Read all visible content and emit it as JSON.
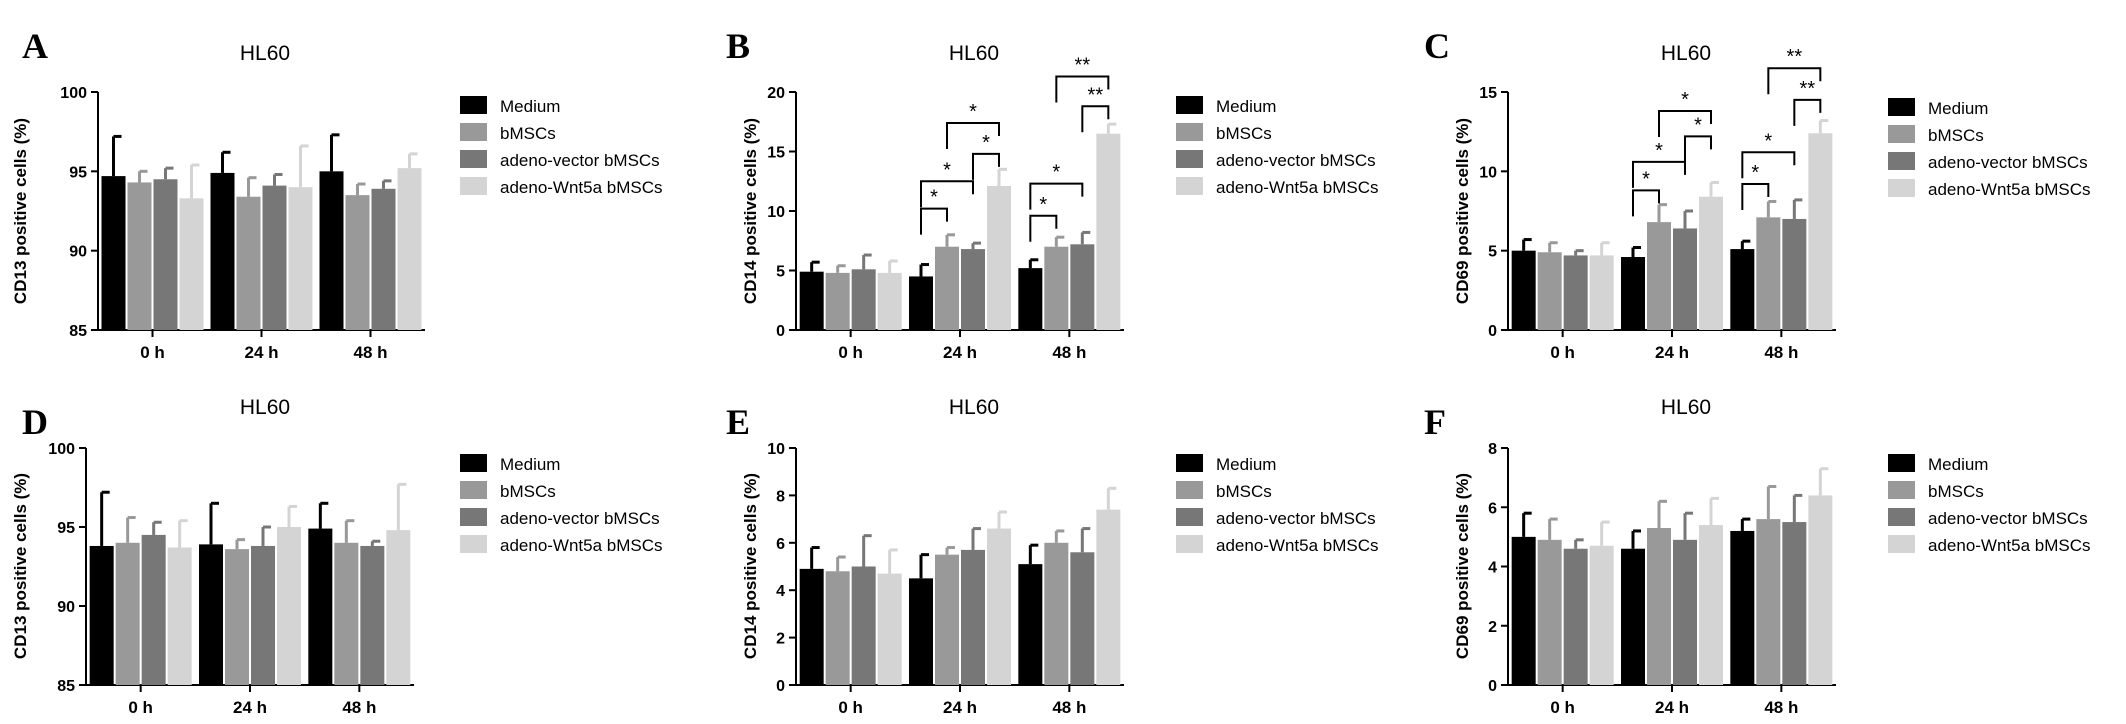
{
  "colors": {
    "medium": "#000000",
    "bmscs": "#999999",
    "vector": "#777777",
    "wnt5a": "#d4d4d4"
  },
  "chart_data": [
    {
      "panel": "A",
      "type": "bar",
      "title": "HL60",
      "ylabel": "CD13 positive cells (%)",
      "ylim": [
        85,
        100
      ],
      "yticks": [
        85,
        90,
        95,
        100
      ],
      "categories": [
        "0 h",
        "24 h",
        "48 h"
      ],
      "series": [
        {
          "name": "Medium",
          "values": [
            94.7,
            94.9,
            95.0
          ],
          "errors": [
            2.5,
            1.3,
            2.3
          ]
        },
        {
          "name": "bMSCs",
          "values": [
            94.3,
            93.4,
            93.5
          ],
          "errors": [
            0.7,
            1.2,
            0.7
          ]
        },
        {
          "name": "adeno-vector bMSCs",
          "values": [
            94.5,
            94.1,
            93.9
          ],
          "errors": [
            0.7,
            0.7,
            0.5
          ]
        },
        {
          "name": "adeno-Wnt5a bMSCs",
          "values": [
            93.3,
            94.0,
            95.2
          ],
          "errors": [
            2.1,
            2.6,
            0.9
          ]
        }
      ],
      "legend": "right",
      "significance": []
    },
    {
      "panel": "B",
      "type": "bar",
      "title": "HL60",
      "ylabel": "CD14 positive cells (%)",
      "ylim": [
        0,
        20
      ],
      "yticks": [
        0,
        5,
        10,
        15,
        20
      ],
      "categories": [
        "0 h",
        "24 h",
        "48 h"
      ],
      "series": [
        {
          "name": "Medium",
          "values": [
            4.9,
            4.5,
            5.2
          ],
          "errors": [
            0.8,
            1.0,
            0.7
          ]
        },
        {
          "name": "bMSCs",
          "values": [
            4.8,
            7.0,
            7.0
          ],
          "errors": [
            0.6,
            1.0,
            0.8
          ]
        },
        {
          "name": "adeno-vector bMSCs",
          "values": [
            5.1,
            6.8,
            7.2
          ],
          "errors": [
            1.2,
            0.5,
            1.0
          ]
        },
        {
          "name": "adeno-Wnt5a bMSCs",
          "values": [
            4.8,
            12.1,
            16.5
          ],
          "errors": [
            1.0,
            1.4,
            0.8
          ]
        }
      ],
      "legend": "right",
      "significance": [
        {
          "category": 1,
          "from": 0,
          "to": 1,
          "level": 10.2,
          "label": "*"
        },
        {
          "category": 1,
          "from": 0,
          "to": 2,
          "level": 12.5,
          "label": "*"
        },
        {
          "category": 1,
          "from": 2,
          "to": 3,
          "level": 14.8,
          "label": "*"
        },
        {
          "category": 1,
          "from": 1,
          "to": 3,
          "level": 17.4,
          "label": "*"
        },
        {
          "category": 2,
          "from": 0,
          "to": 1,
          "level": 9.6,
          "label": "*"
        },
        {
          "category": 2,
          "from": 0,
          "to": 2,
          "level": 12.3,
          "label": "*"
        },
        {
          "category": 2,
          "from": 2,
          "to": 3,
          "level": 18.8,
          "label": "**"
        },
        {
          "category": 2,
          "from": 1,
          "to": 3,
          "level": 21.3,
          "label": "**"
        }
      ]
    },
    {
      "panel": "C",
      "type": "bar",
      "title": "HL60",
      "ylabel": "CD69 positive cells (%)",
      "ylim": [
        0,
        15
      ],
      "yticks": [
        0,
        5,
        10,
        15
      ],
      "categories": [
        "0 h",
        "24 h",
        "48 h"
      ],
      "series": [
        {
          "name": "Medium",
          "values": [
            5.0,
            4.6,
            5.1
          ],
          "errors": [
            0.7,
            0.6,
            0.5
          ]
        },
        {
          "name": "bMSCs",
          "values": [
            4.9,
            6.8,
            7.1
          ],
          "errors": [
            0.6,
            1.1,
            1.0
          ]
        },
        {
          "name": "adeno-vector bMSCs",
          "values": [
            4.7,
            6.4,
            7.0
          ],
          "errors": [
            0.3,
            1.1,
            1.2
          ]
        },
        {
          "name": "adeno-Wnt5a bMSCs",
          "values": [
            4.7,
            8.4,
            12.4
          ],
          "errors": [
            0.8,
            0.9,
            0.8
          ]
        }
      ],
      "legend": "right",
      "significance": [
        {
          "category": 1,
          "from": 0,
          "to": 1,
          "level": 8.8,
          "label": "*"
        },
        {
          "category": 1,
          "from": 0,
          "to": 2,
          "level": 10.6,
          "label": "*"
        },
        {
          "category": 1,
          "from": 2,
          "to": 3,
          "level": 12.2,
          "label": "*"
        },
        {
          "category": 1,
          "from": 1,
          "to": 3,
          "level": 13.8,
          "label": "*"
        },
        {
          "category": 2,
          "from": 0,
          "to": 1,
          "level": 9.2,
          "label": "*"
        },
        {
          "category": 2,
          "from": 0,
          "to": 2,
          "level": 11.2,
          "label": "*"
        },
        {
          "category": 2,
          "from": 2,
          "to": 3,
          "level": 14.5,
          "label": "**"
        },
        {
          "category": 2,
          "from": 1,
          "to": 3,
          "level": 16.5,
          "label": "**"
        }
      ]
    },
    {
      "panel": "D",
      "type": "bar",
      "title": "HL60",
      "ylabel": "CD13 positive cells (%)",
      "ylim": [
        85,
        100
      ],
      "yticks": [
        85,
        90,
        95,
        100
      ],
      "categories": [
        "0 h",
        "24 h",
        "48 h"
      ],
      "series": [
        {
          "name": "Medium",
          "values": [
            93.8,
            93.9,
            94.9
          ],
          "errors": [
            3.4,
            2.6,
            1.6
          ]
        },
        {
          "name": "bMSCs",
          "values": [
            94.0,
            93.6,
            94.0
          ],
          "errors": [
            1.6,
            0.6,
            1.4
          ]
        },
        {
          "name": "adeno-vector bMSCs",
          "values": [
            94.5,
            93.8,
            93.8
          ],
          "errors": [
            0.8,
            1.2,
            0.3
          ]
        },
        {
          "name": "adeno-Wnt5a bMSCs",
          "values": [
            93.7,
            95.0,
            94.8
          ],
          "errors": [
            1.7,
            1.3,
            2.9
          ]
        }
      ],
      "legend": "right",
      "significance": []
    },
    {
      "panel": "E",
      "type": "bar",
      "title": "HL60",
      "ylabel": "CD14 positive cells (%)",
      "ylim": [
        0,
        10
      ],
      "yticks": [
        0,
        2,
        4,
        6,
        8,
        10
      ],
      "categories": [
        "0 h",
        "24 h",
        "48 h"
      ],
      "series": [
        {
          "name": "Medium",
          "values": [
            4.9,
            4.5,
            5.1
          ],
          "errors": [
            0.9,
            1.0,
            0.8
          ]
        },
        {
          "name": "bMSCs",
          "values": [
            4.8,
            5.5,
            6.0
          ],
          "errors": [
            0.6,
            0.3,
            0.5
          ]
        },
        {
          "name": "adeno-vector bMSCs",
          "values": [
            5.0,
            5.7,
            5.6
          ],
          "errors": [
            1.3,
            0.9,
            1.0
          ]
        },
        {
          "name": "adeno-Wnt5a bMSCs",
          "values": [
            4.7,
            6.6,
            7.4
          ],
          "errors": [
            1.0,
            0.7,
            0.9
          ]
        }
      ],
      "legend": "right",
      "significance": []
    },
    {
      "panel": "F",
      "type": "bar",
      "title": "HL60",
      "ylabel": "CD69 positive cells (%)",
      "ylim": [
        0,
        8
      ],
      "yticks": [
        0,
        2,
        4,
        6,
        8
      ],
      "categories": [
        "0 h",
        "24 h",
        "48 h"
      ],
      "series": [
        {
          "name": "Medium",
          "values": [
            5.0,
            4.6,
            5.2
          ],
          "errors": [
            0.8,
            0.6,
            0.4
          ]
        },
        {
          "name": "bMSCs",
          "values": [
            4.9,
            5.3,
            5.6
          ],
          "errors": [
            0.7,
            0.9,
            1.1
          ]
        },
        {
          "name": "adeno-vector bMSCs",
          "values": [
            4.6,
            4.9,
            5.5
          ],
          "errors": [
            0.3,
            0.9,
            0.9
          ]
        },
        {
          "name": "adeno-Wnt5a bMSCs",
          "values": [
            4.7,
            5.4,
            6.4
          ],
          "errors": [
            0.8,
            0.9,
            0.9
          ]
        }
      ],
      "legend": "right",
      "significance": []
    }
  ]
}
